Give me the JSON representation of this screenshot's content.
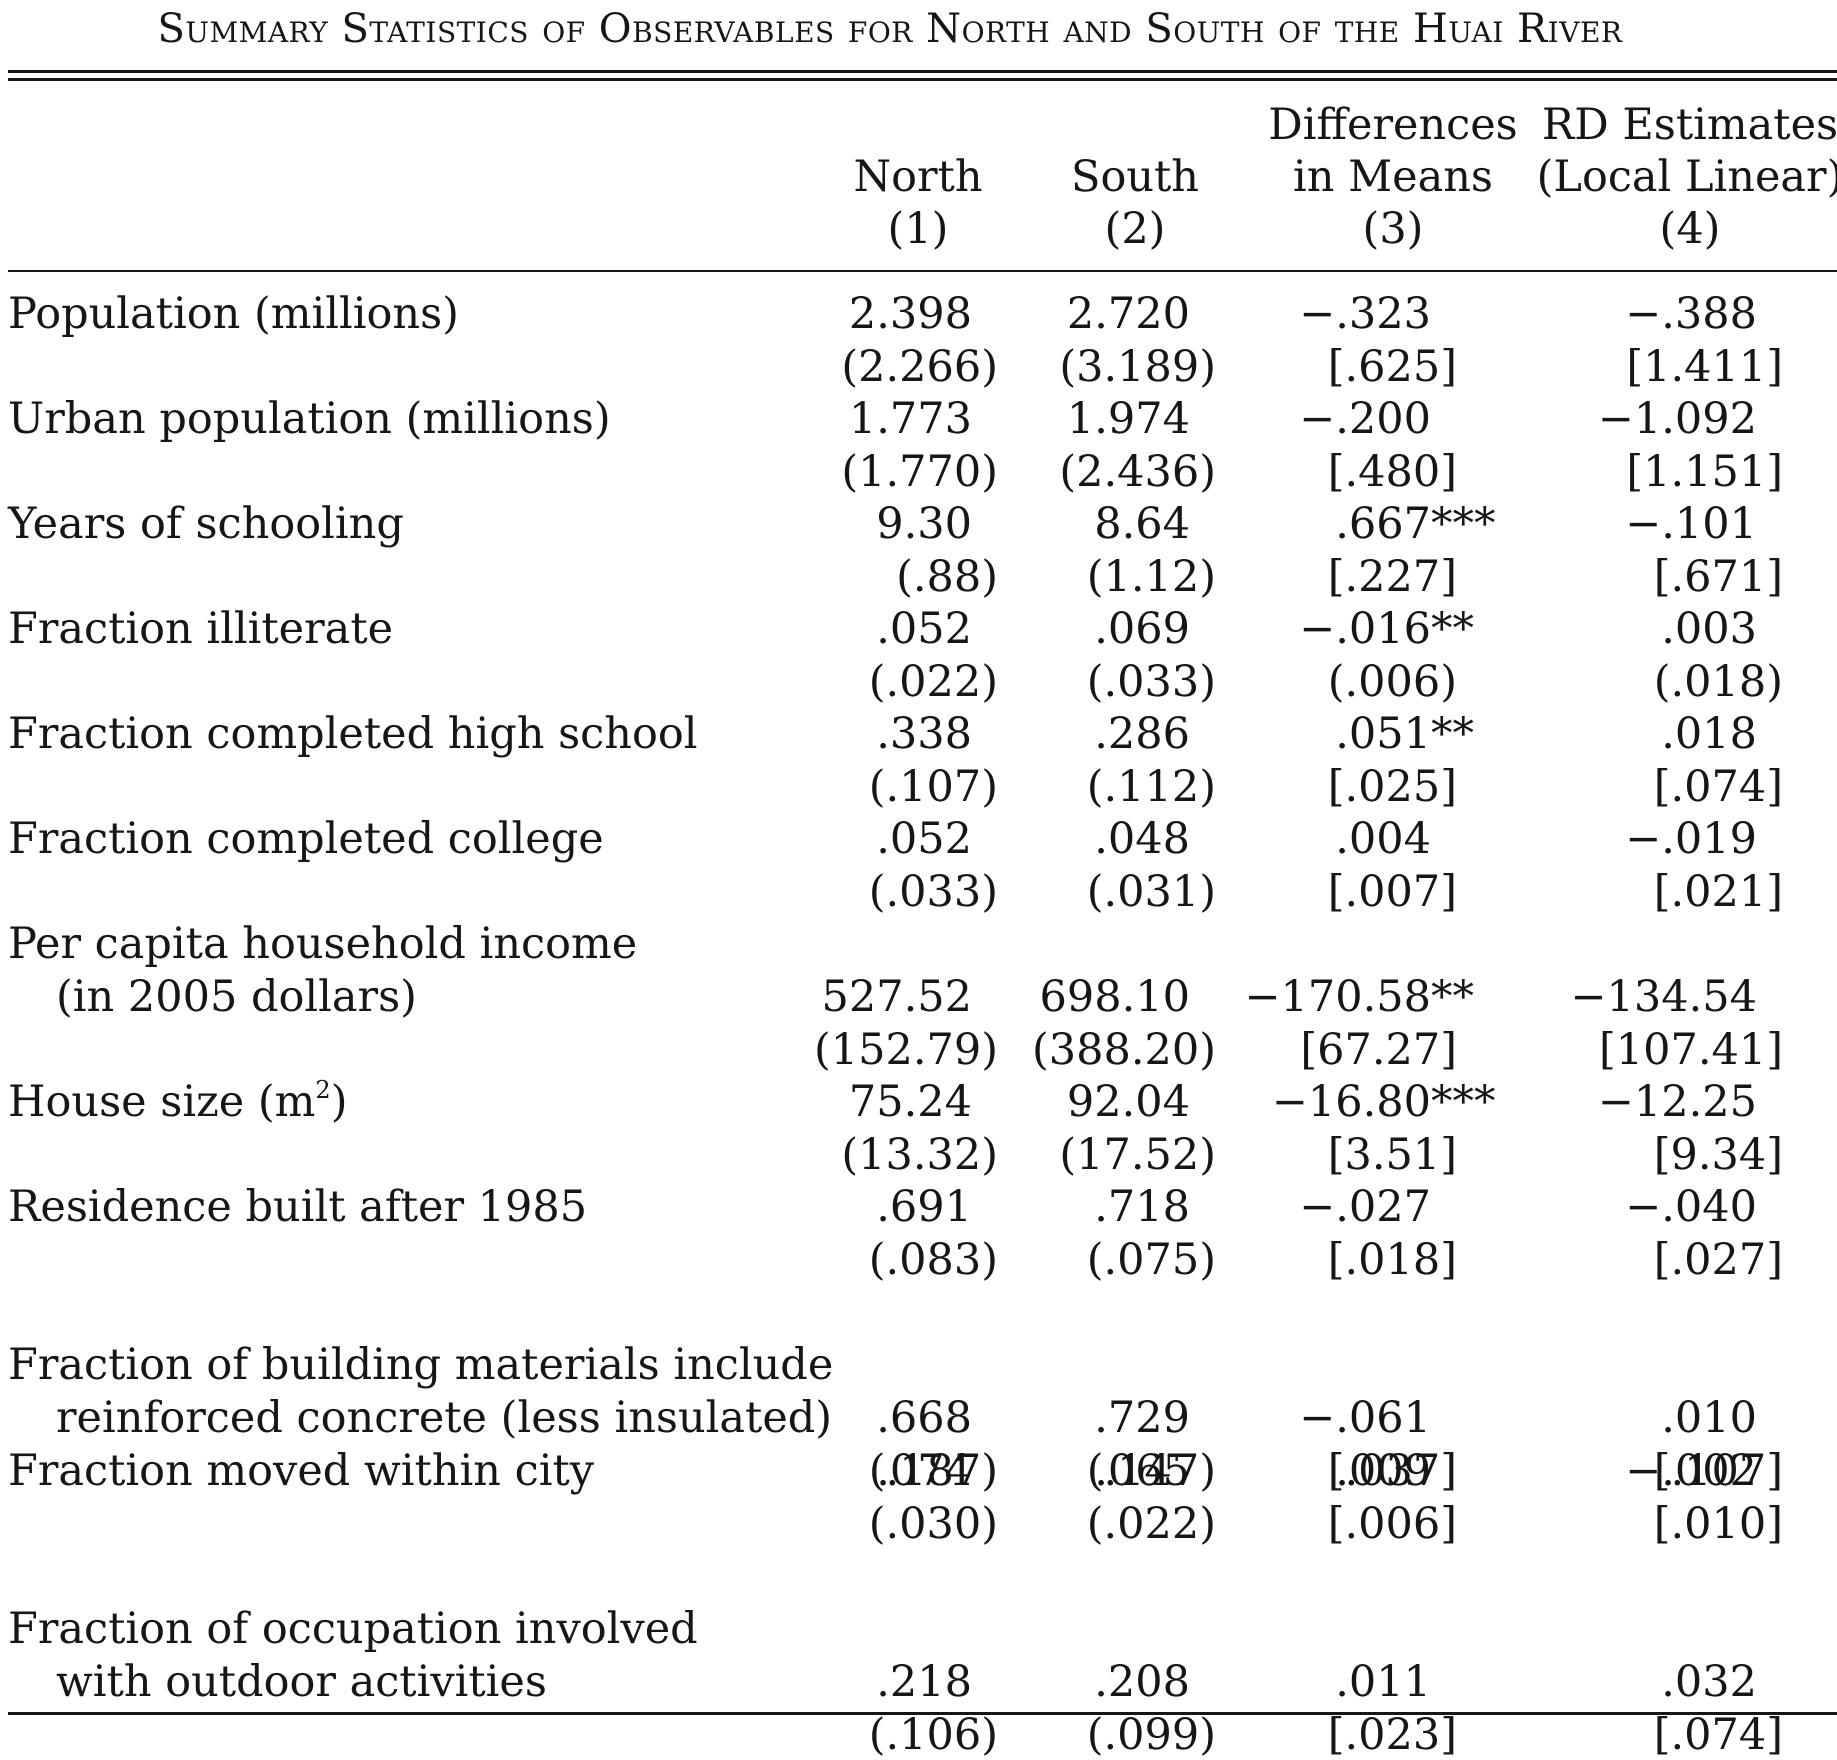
{
  "caption": "Summary Statistics of Observables for North and South of the Huai River",
  "columns": [
    {
      "line1": "",
      "line2": "North",
      "line3": "(1)"
    },
    {
      "line1": "",
      "line2": "South",
      "line3": "(2)"
    },
    {
      "line1": "Differences",
      "line2": "in Means",
      "line3": "(3)"
    },
    {
      "line1": "RD Estimates",
      "line2": "(Local Linear)",
      "line3": "(4)"
    }
  ],
  "rows": [
    {
      "label": [
        "Population (millions)"
      ],
      "values": [
        "2.398",
        "2.720",
        "−.323",
        "−.388"
      ],
      "errors": [
        "(2.266)",
        "(3.189)",
        "[.625]",
        "[1.411]"
      ]
    },
    {
      "label": [
        "Urban population (millions)"
      ],
      "values": [
        "1.773",
        "1.974",
        "−.200",
        "−1.092"
      ],
      "errors": [
        "(1.770)",
        "(2.436)",
        "[.480]",
        "[1.151]"
      ]
    },
    {
      "label": [
        "Years of schooling"
      ],
      "values": [
        "9.30",
        "8.64",
        ".667***",
        "−.101"
      ],
      "errors": [
        "(.88)",
        "(1.12)",
        "[.227]",
        "[.671]"
      ]
    },
    {
      "label": [
        "Fraction illiterate"
      ],
      "values": [
        ".052",
        ".069",
        "−.016**",
        ".003"
      ],
      "errors": [
        "(.022)",
        "(.033)",
        "(.006)",
        "(.018)"
      ]
    },
    {
      "label": [
        "Fraction completed high school"
      ],
      "values": [
        ".338",
        ".286",
        ".051**",
        ".018"
      ],
      "errors": [
        "(.107)",
        "(.112)",
        "[.025]",
        "[.074]"
      ]
    },
    {
      "label": [
        "Fraction completed college"
      ],
      "values": [
        ".052",
        ".048",
        ".004",
        "−.019"
      ],
      "errors": [
        "(.033)",
        "(.031)",
        "[.007]",
        "[.021]"
      ]
    },
    {
      "label": [
        "Per capita household income",
        "(in 2005 dollars)"
      ],
      "values": [
        "527.52",
        "698.10",
        "−170.58**",
        "−134.54"
      ],
      "errors": [
        "(152.79)",
        "(388.20)",
        "[67.27]",
        "[107.41]"
      ]
    },
    {
      "label": [
        "House size (m",
        "2",
        ")"
      ],
      "values": [
        "75.24",
        "92.04",
        "−16.80***",
        "−12.25"
      ],
      "errors": [
        "(13.32)",
        "(17.52)",
        "[3.51]",
        "[9.34]"
      ]
    },
    {
      "label": [
        "Residence built after 1985"
      ],
      "values": [
        ".691",
        ".718",
        "−.027",
        "−.040"
      ],
      "errors": [
        "(.083)",
        "(.075)",
        "[.018]",
        "[.027]"
      ]
    },
    {
      "label": [
        "Fraction of building materials include",
        "reinforced concrete (less insulated)"
      ],
      "values": [
        ".668",
        ".729",
        "−.061",
        ".010"
      ],
      "errors": [
        "(.187)",
        "(.147)",
        "[.037]",
        "[.107]"
      ]
    },
    {
      "label": [
        "Fraction moved within city"
      ],
      "values": [
        ".074",
        ".065",
        ".009",
        "−.002"
      ],
      "errors": [
        "(.030)",
        "(.022)",
        "[.006]",
        "[.010]"
      ]
    },
    {
      "label": [
        "Fraction of occupation involved",
        "with outdoor activities"
      ],
      "values": [
        ".218",
        ".208",
        ".011",
        ".032"
      ],
      "errors": [
        "(.106)",
        "(.099)",
        "[.023]",
        "[.074]"
      ]
    }
  ]
}
